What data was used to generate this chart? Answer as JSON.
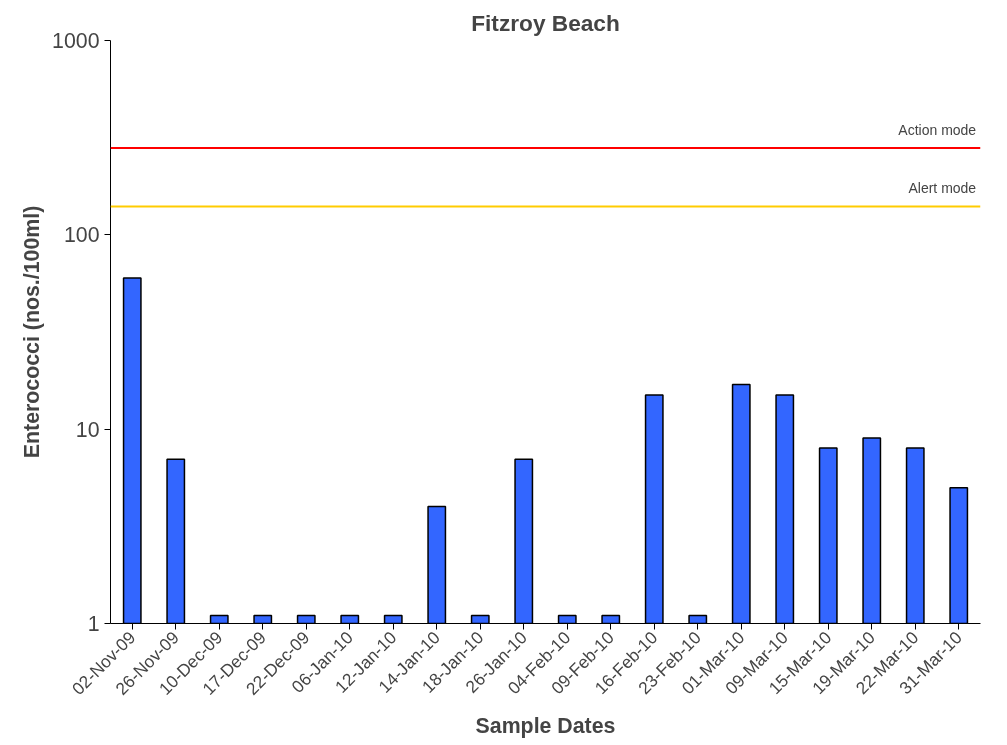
{
  "chart_data": {
    "type": "bar",
    "title": "Fitzroy Beach",
    "xlabel": "Sample Dates",
    "ylabel": "Enterococci (nos./100ml)",
    "categories": [
      "02-Nov-09",
      "26-Nov-09",
      "10-Dec-09",
      "17-Dec-09",
      "22-Dec-09",
      "06-Jan-10",
      "12-Jan-10",
      "14-Jan-10",
      "18-Jan-10",
      "26-Jan-10",
      "04-Feb-10",
      "09-Feb-10",
      "16-Feb-10",
      "23-Feb-10",
      "01-Mar-10",
      "09-Mar-10",
      "15-Mar-10",
      "19-Mar-10",
      "22-Mar-10",
      "31-Mar-10"
    ],
    "values": [
      60,
      7,
      1.1,
      1.1,
      1.1,
      1.1,
      1.1,
      4,
      1.1,
      7,
      1.1,
      1.1,
      15,
      1.1,
      17,
      15,
      8,
      9,
      8,
      5
    ],
    "color": "#3366ff",
    "log": true,
    "ylim": [
      1,
      1000
    ],
    "yticks": [
      1,
      10,
      100,
      1000
    ],
    "grid": false,
    "ref_lines": [
      {
        "axis": "y",
        "value": 280,
        "label": "Action mode",
        "color": "#ff0000"
      },
      {
        "axis": "y",
        "value": 140,
        "label": "Alert mode",
        "color": "#ffcc00"
      }
    ]
  }
}
